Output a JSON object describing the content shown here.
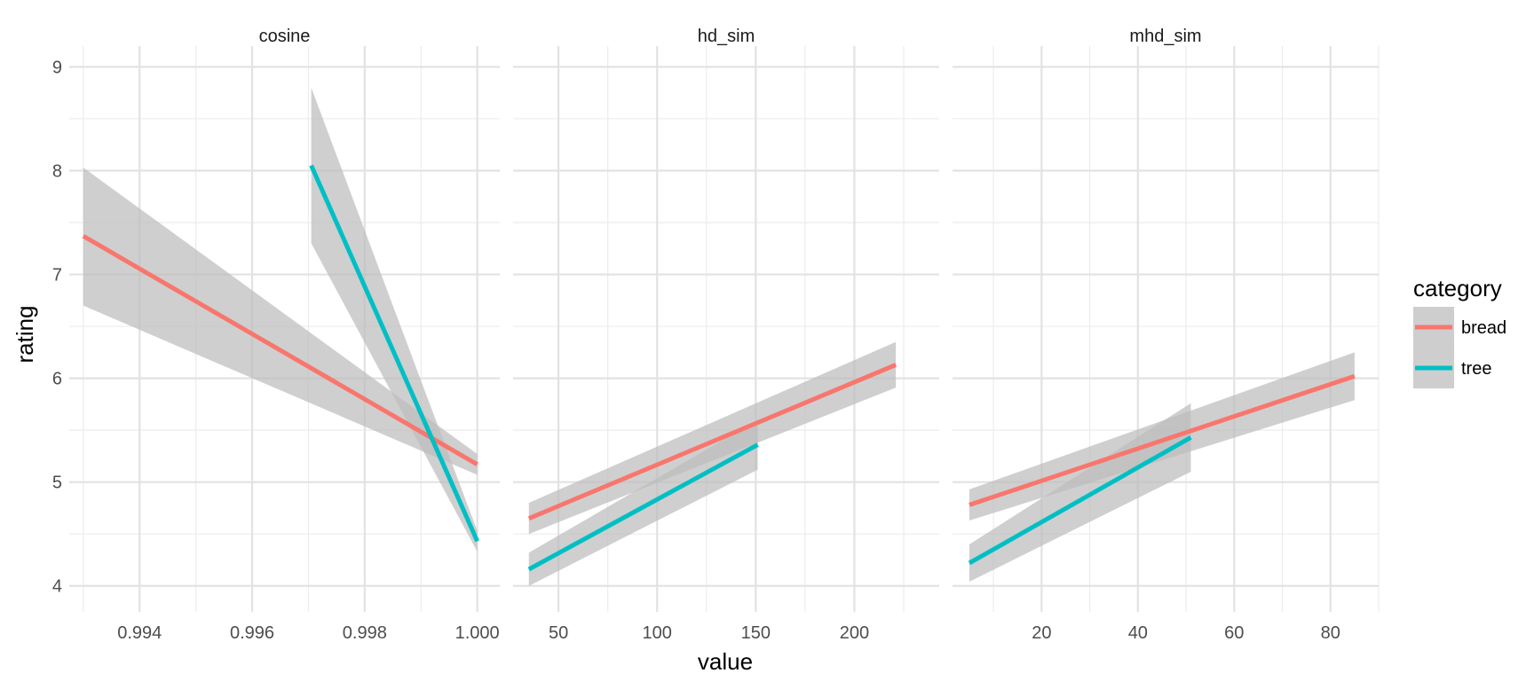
{
  "chart_data": {
    "type": "line",
    "description_kind": "faceted linear fits with confidence bands",
    "xlabel": "value",
    "ylabel": "rating",
    "ylim": [
      3.75,
      9.2
    ],
    "yticks": [
      4,
      5,
      6,
      7,
      8,
      9
    ],
    "ytick_labels": [
      "4",
      "5",
      "6",
      "7",
      "8",
      "9"
    ],
    "grid": true,
    "legend": {
      "title": "category",
      "position": "right",
      "entries": [
        {
          "name": "bread",
          "color": "#F8766D"
        },
        {
          "name": "tree",
          "color": "#00BFC4"
        }
      ]
    },
    "band_color": "#bdbdbd",
    "panels": [
      {
        "title": "cosine",
        "xlim": [
          0.99275,
          1.0004
        ],
        "xticks": [
          0.994,
          0.996,
          0.998,
          1.0
        ],
        "xtick_labels": [
          "0.994",
          "0.996",
          "0.998",
          "1.000"
        ],
        "x_minor": [
          0.993,
          0.995,
          0.997,
          0.999
        ],
        "series": [
          {
            "name": "bread",
            "x": [
              0.993,
              1.0
            ],
            "y": [
              7.37,
              5.17
            ],
            "lower": [
              6.7,
              5.07
            ],
            "upper": [
              8.03,
              5.27
            ]
          },
          {
            "name": "tree",
            "x": [
              0.99705,
              1.0
            ],
            "y": [
              8.05,
              4.43
            ],
            "lower": [
              7.3,
              4.33
            ],
            "upper": [
              8.8,
              4.53
            ]
          }
        ]
      },
      {
        "title": "hd_sim",
        "xlim": [
          27,
          243
        ],
        "xticks": [
          50,
          100,
          150,
          200
        ],
        "xtick_labels": [
          "50",
          "100",
          "150",
          "200"
        ],
        "x_minor": [
          75,
          125,
          175,
          225
        ],
        "series": [
          {
            "name": "bread",
            "x": [
              35,
              221
            ],
            "y": [
              4.65,
              6.13
            ],
            "lower": [
              4.5,
              5.91
            ],
            "upper": [
              4.8,
              6.35
            ]
          },
          {
            "name": "tree",
            "x": [
              35,
              151
            ],
            "y": [
              4.16,
              5.36
            ],
            "lower": [
              4.0,
              5.12
            ],
            "upper": [
              4.32,
              5.6
            ]
          }
        ]
      },
      {
        "title": "mhd_sim",
        "xlim": [
          1.5,
          90
        ],
        "xticks": [
          20,
          40,
          60,
          80
        ],
        "xtick_labels": [
          "20",
          "40",
          "60",
          "80"
        ],
        "x_minor": [
          10,
          30,
          50,
          70,
          90
        ],
        "series": [
          {
            "name": "bread",
            "x": [
              5,
              85
            ],
            "y": [
              4.78,
              6.02
            ],
            "lower": [
              4.63,
              5.79
            ],
            "upper": [
              4.93,
              6.25
            ]
          },
          {
            "name": "tree",
            "x": [
              5,
              51
            ],
            "y": [
              4.22,
              5.43
            ],
            "lower": [
              4.04,
              5.1
            ],
            "upper": [
              4.4,
              5.76
            ]
          }
        ]
      }
    ]
  }
}
